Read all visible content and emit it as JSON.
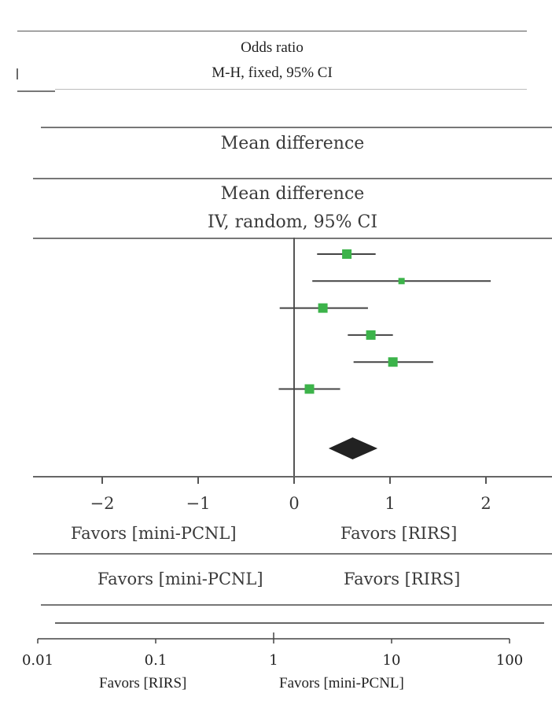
{
  "header_top": {
    "line1": "Odds ratio",
    "line2": "M-H, fixed, 95% CI"
  },
  "mid_header": {
    "title": "Mean difference"
  },
  "forest_header": {
    "line1": "Mean difference",
    "line2": "IV, random, 95% CI"
  },
  "favors_row1": {
    "left": "Favors [mini-PCNL]",
    "right": "Favors [RIRS]"
  },
  "favors_row2": {
    "left": "Favors [mini-PCNL]",
    "right": "Favors [RIRS]"
  },
  "bottom_axis_labels": {
    "left": "Favors [RIRS]",
    "right": "Favors [mini-PCNL]"
  },
  "colors": {
    "marker": "#3cb34a",
    "diamond": "#222222",
    "line": "#444444"
  },
  "chart_data": [
    {
      "type": "forest",
      "x_scale": "linear",
      "xlim": [
        -2.6,
        2.6
      ],
      "ticks": [
        -2,
        -1,
        0,
        1,
        2
      ],
      "tick_labels": [
        "−2",
        "−1",
        "0",
        "1",
        "2"
      ],
      "reference_line": 0,
      "studies": [
        {
          "estimate": 0.55,
          "ci": [
            0.24,
            0.85
          ]
        },
        {
          "estimate": 1.12,
          "ci": [
            0.19,
            2.05
          ]
        },
        {
          "estimate": 0.3,
          "ci": [
            -0.15,
            0.77
          ]
        },
        {
          "estimate": 0.8,
          "ci": [
            0.56,
            1.03
          ]
        },
        {
          "estimate": 1.03,
          "ci": [
            0.62,
            1.45
          ]
        },
        {
          "estimate": 0.16,
          "ci": [
            -0.16,
            0.48
          ]
        }
      ],
      "pooled": {
        "estimate": 0.61,
        "ci": [
          0.36,
          0.87
        ]
      },
      "xlabel_left": "Favors [mini-PCNL]",
      "xlabel_right": "Favors [RIRS]"
    },
    {
      "type": "forest-axis",
      "x_scale": "log",
      "xlim": [
        0.01,
        100
      ],
      "ticks": [
        0.01,
        0.1,
        1,
        10,
        100
      ],
      "tick_labels": [
        "0.01",
        "0.1",
        "1",
        "10",
        "100"
      ],
      "xlabel_left": "Favors [RIRS]",
      "xlabel_right": "Favors [mini-PCNL]"
    }
  ]
}
